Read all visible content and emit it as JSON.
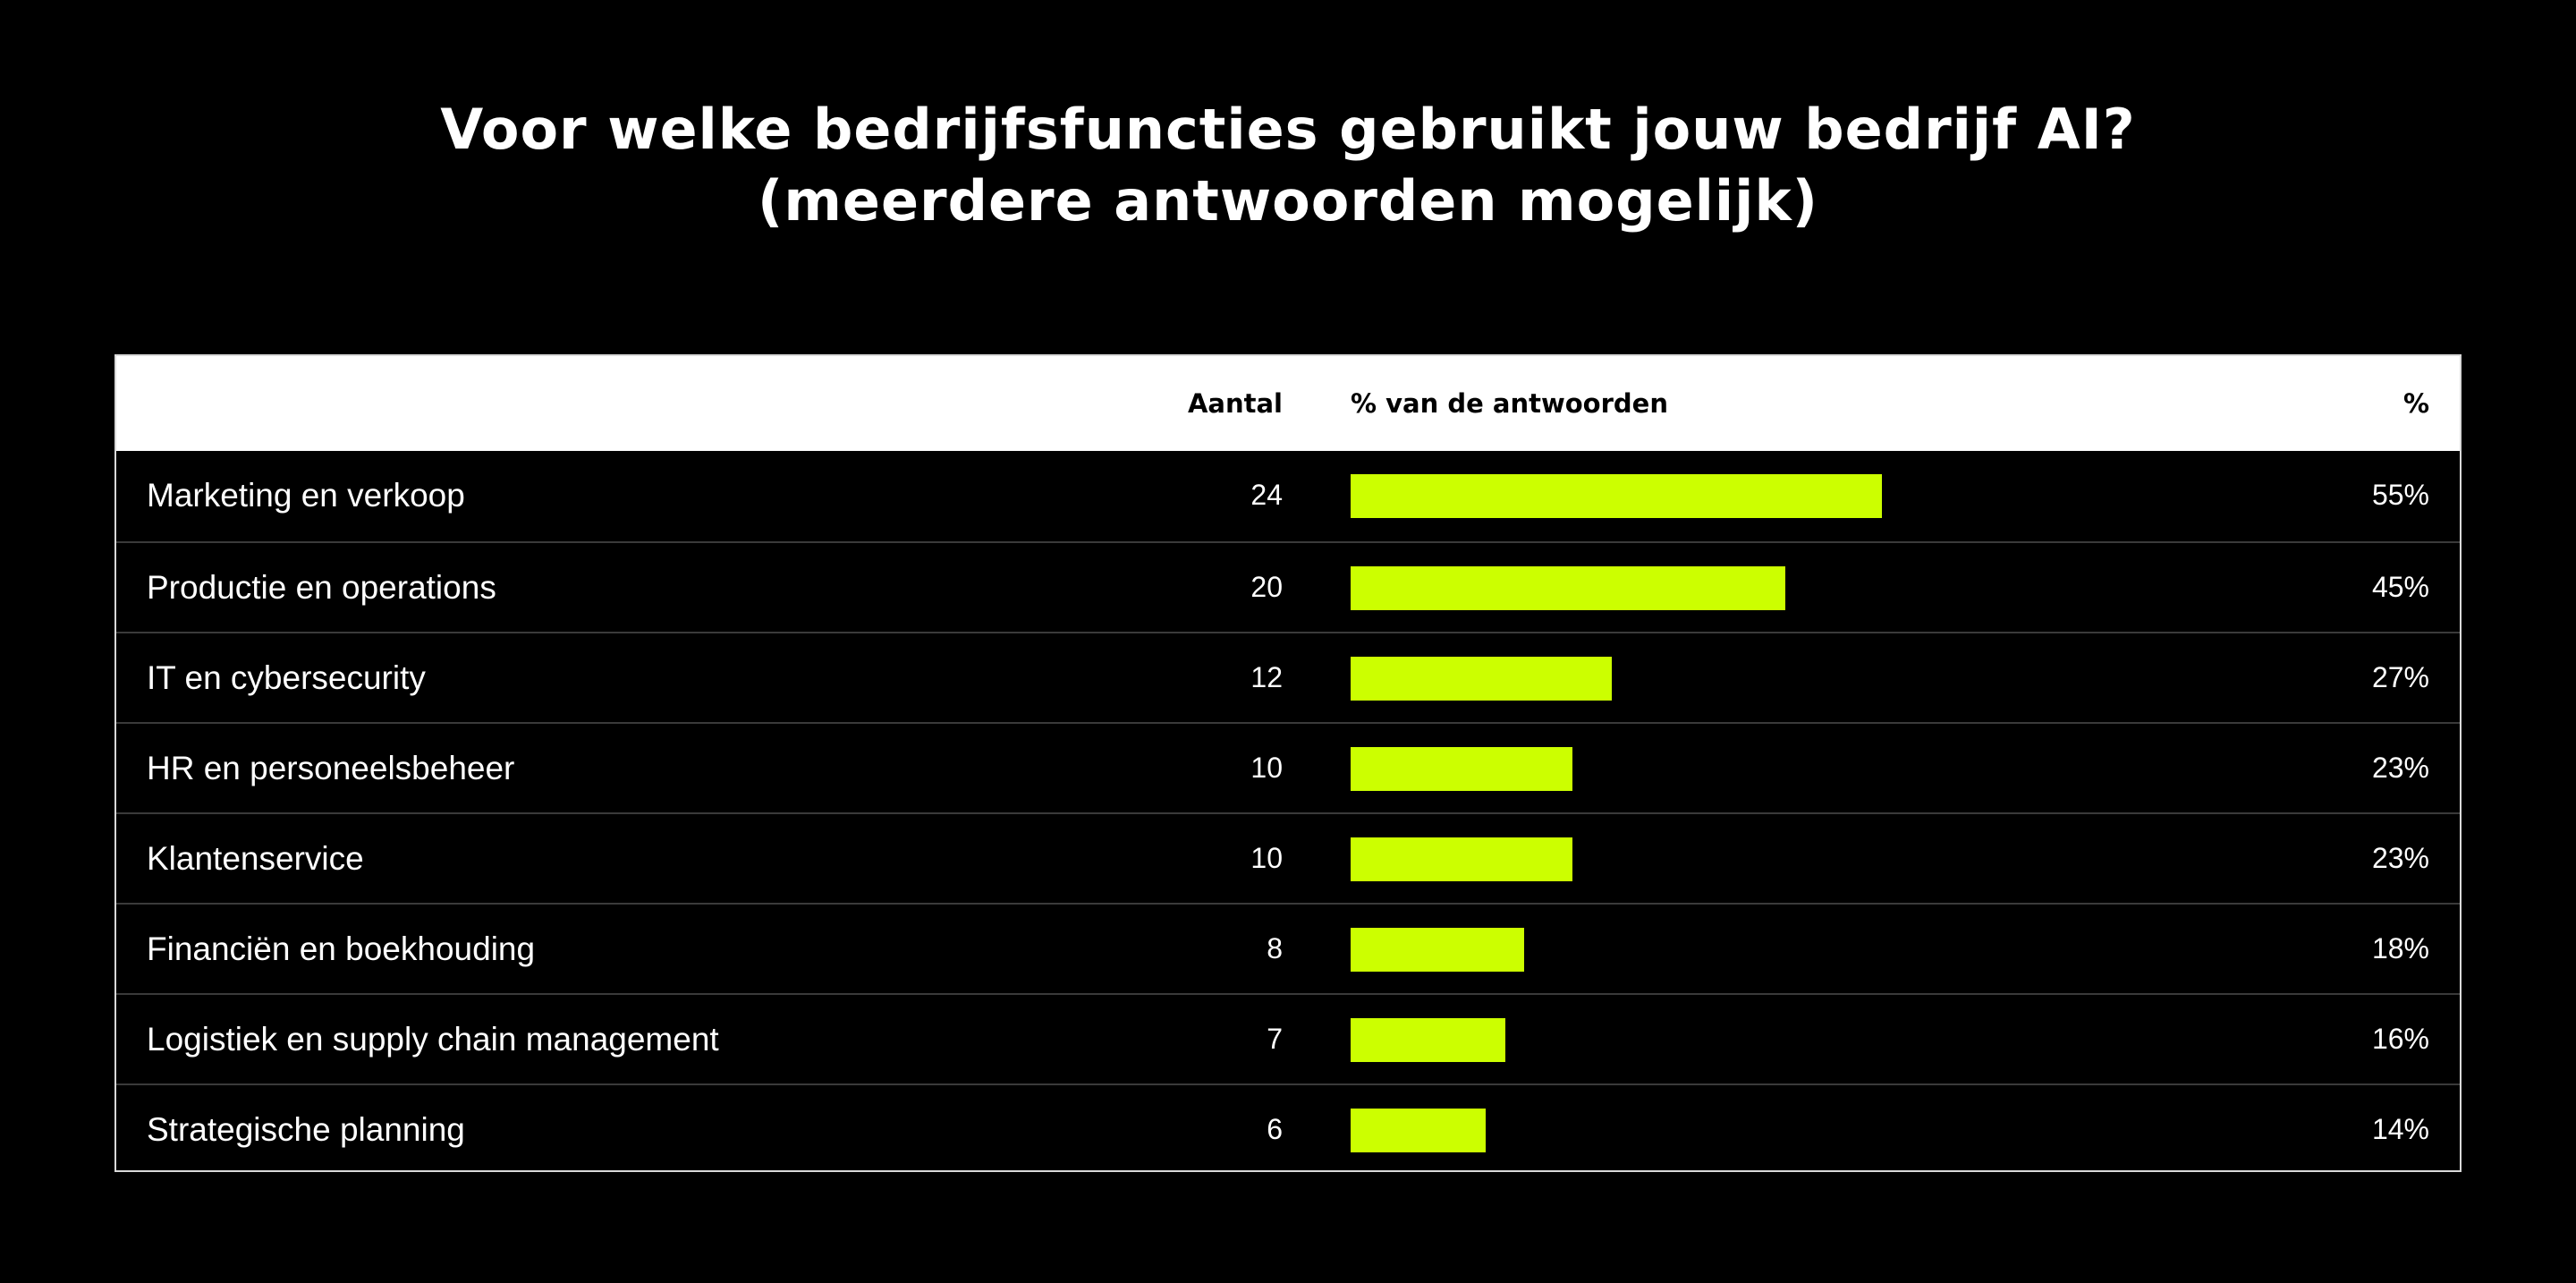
{
  "title": {
    "line1": "Voor welke bedrijfsfuncties gebruikt jouw bedrijf AI?",
    "line2": "(meerdere antwoorden mogelijk)"
  },
  "table": {
    "headers": {
      "label": "",
      "count": "Aantal",
      "bar": "% van de antwoorden",
      "pct": "%"
    }
  },
  "chart_data": {
    "type": "bar",
    "orientation": "horizontal",
    "bar_color": "#ccff00",
    "max_percent": 100,
    "rows": [
      {
        "label": "Marketing en verkoop",
        "count": 24,
        "percent": 55,
        "percent_label": "55%"
      },
      {
        "label": "Productie en operations",
        "count": 20,
        "percent": 45,
        "percent_label": "45%"
      },
      {
        "label": "IT en cybersecurity",
        "count": 12,
        "percent": 27,
        "percent_label": "27%"
      },
      {
        "label": "HR en personeelsbeheer",
        "count": 10,
        "percent": 23,
        "percent_label": "23%"
      },
      {
        "label": "Klantenservice",
        "count": 10,
        "percent": 23,
        "percent_label": "23%"
      },
      {
        "label": "Financiën en boekhouding",
        "count": 8,
        "percent": 18,
        "percent_label": "18%"
      },
      {
        "label": "Logistiek en supply chain management",
        "count": 7,
        "percent": 16,
        "percent_label": "16%"
      },
      {
        "label": "Strategische planning",
        "count": 6,
        "percent": 14,
        "percent_label": "14%"
      }
    ]
  }
}
